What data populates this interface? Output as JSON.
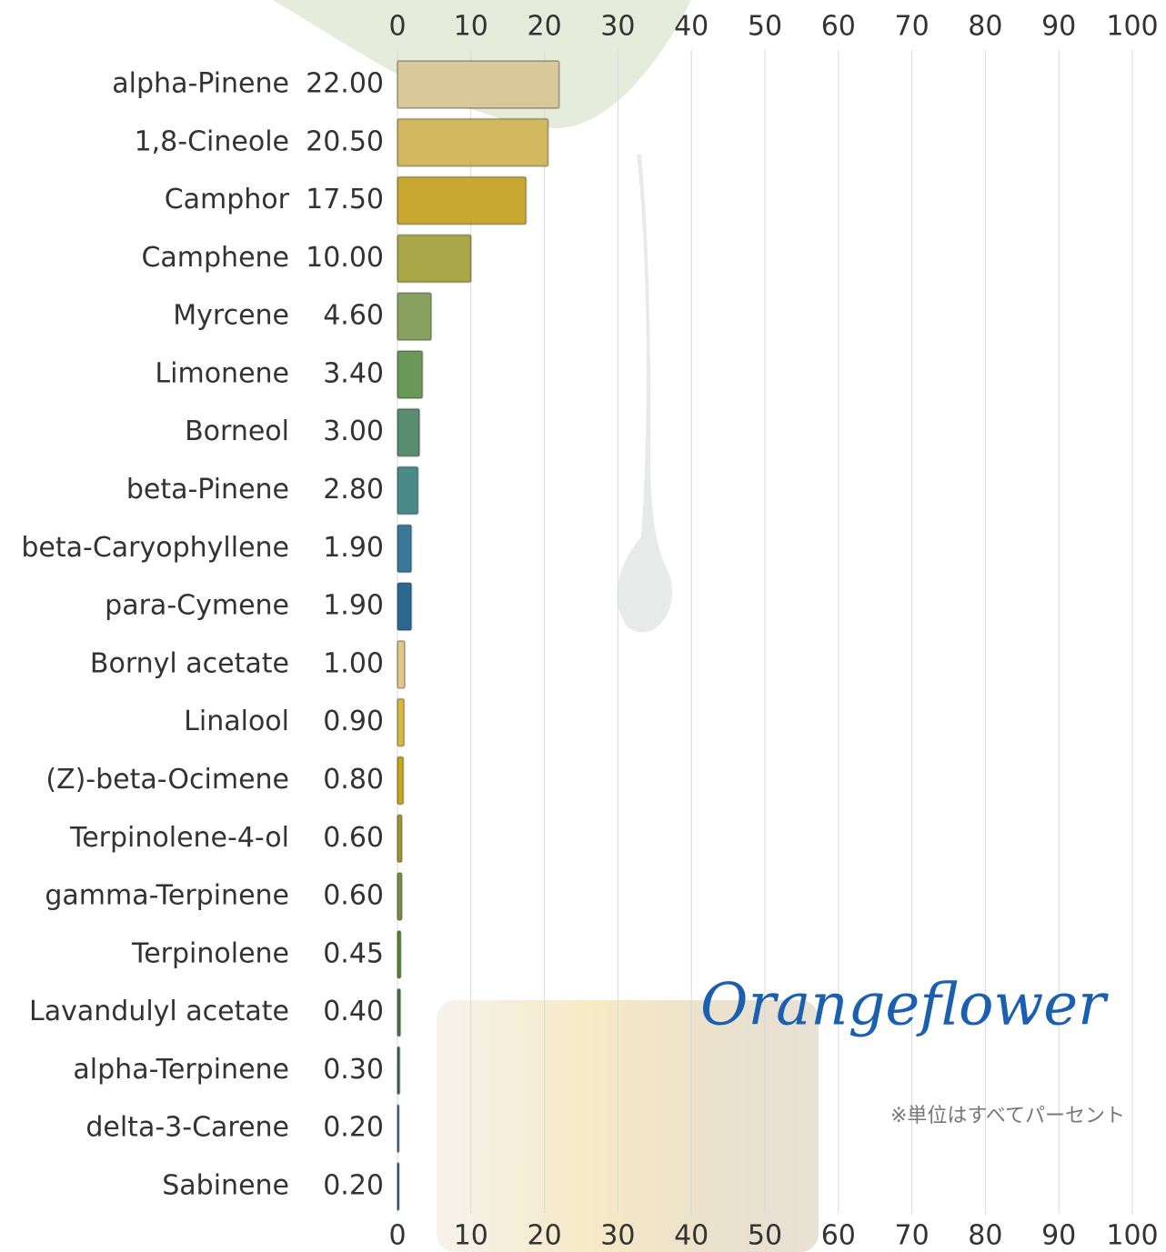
{
  "chart_data": {
    "type": "barh",
    "categories": [
      "alpha-Pinene",
      "1,8-Cineole",
      "Camphor",
      "Camphene",
      "Myrcene",
      "Limonene",
      "Borneol",
      "beta-Pinene",
      "beta-Caryophyllene",
      "para-Cymene",
      "Bornyl acetate",
      "Linalool",
      "(Z)-beta-Ocimene",
      "Terpinolene-4-ol",
      "gamma-Terpinene",
      "Terpinolene",
      "Lavandulyl acetate",
      "alpha-Terpinene",
      "delta-3-Carene",
      "Sabinene"
    ],
    "values": [
      22,
      20.5,
      17.5,
      10,
      4.6,
      3.4,
      3,
      2.8,
      1.9,
      1.9,
      1,
      0.9,
      0.8,
      0.6,
      0.6,
      0.45,
      0.4,
      0.3,
      0.2,
      0.2
    ],
    "value_labels": [
      "22.00",
      "20.50",
      "17.50",
      "10.00",
      "4.60",
      "3.40",
      "3.00",
      "2.80",
      "1.90",
      "1.90",
      "1.00",
      "0.90",
      "0.80",
      "0.60",
      "0.60",
      "0.45",
      "0.40",
      "0.30",
      "0.20",
      "0.20"
    ],
    "colors": [
      "#d8c89a",
      "#d4b860",
      "#c8a830",
      "#a8a848",
      "#88a060",
      "#6a9858",
      "#5a8c70",
      "#4a8a88",
      "#3a7898",
      "#2c6890",
      "#e0c888",
      "#d8b840",
      "#c8a818",
      "#a09830",
      "#7a9048",
      "#5a8838",
      "#4a7c48",
      "#3a7060",
      "#1a6878",
      "#10507a"
    ],
    "xlim": [
      0,
      100
    ],
    "xticks": [
      0,
      10,
      20,
      30,
      40,
      50,
      60,
      70,
      80,
      90,
      100
    ],
    "grid": true,
    "annotations": [
      "Orangeflower",
      "※単位はすべてパーセント"
    ]
  }
}
